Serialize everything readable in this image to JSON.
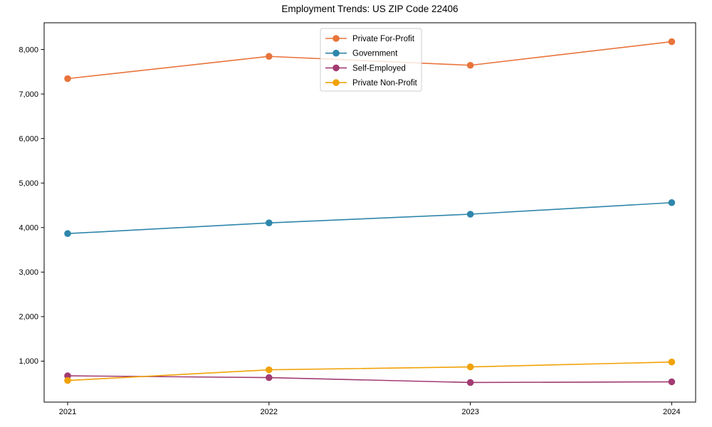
{
  "title": "Employment Trends: US ZIP Code 22406",
  "chart_data": {
    "type": "line",
    "x": [
      "2021",
      "2022",
      "2023",
      "2024"
    ],
    "series": [
      {
        "name": "Private For-Profit",
        "color": "#E8743B",
        "values": [
          7345,
          7845,
          7645,
          8175
        ]
      },
      {
        "name": "Government",
        "color": "#2E86AB",
        "values": [
          3865,
          4105,
          4300,
          4560
        ]
      },
      {
        "name": "Self-Employed",
        "color": "#A23B72",
        "values": [
          670,
          630,
          520,
          535
        ]
      },
      {
        "name": "Private Non-Profit",
        "color": "#F1A208",
        "values": [
          565,
          805,
          870,
          980
        ]
      }
    ],
    "title": "Employment Trends: US ZIP Code 22406",
    "xlabel": "",
    "ylabel": "",
    "yticks": [
      1000,
      2000,
      3000,
      4000,
      5000,
      6000,
      7000,
      8000
    ],
    "ytick_labels": [
      "1,000",
      "2,000",
      "3,000",
      "4,000",
      "5,000",
      "6,000",
      "7,000",
      "8,000"
    ],
    "ylim": [
      80,
      8600
    ],
    "grid": false,
    "marker": "circle",
    "legend_position": "upper center",
    "legend_entries": [
      "Private For-Profit",
      "Government",
      "Self-Employed",
      "Private Non-Profit"
    ]
  },
  "colors": {
    "background": "#ffffff",
    "spine": "#000000",
    "legend_border": "#cccccc",
    "legend_background": "rgba(255,255,255,0.8)",
    "tick_label": "#000000"
  }
}
